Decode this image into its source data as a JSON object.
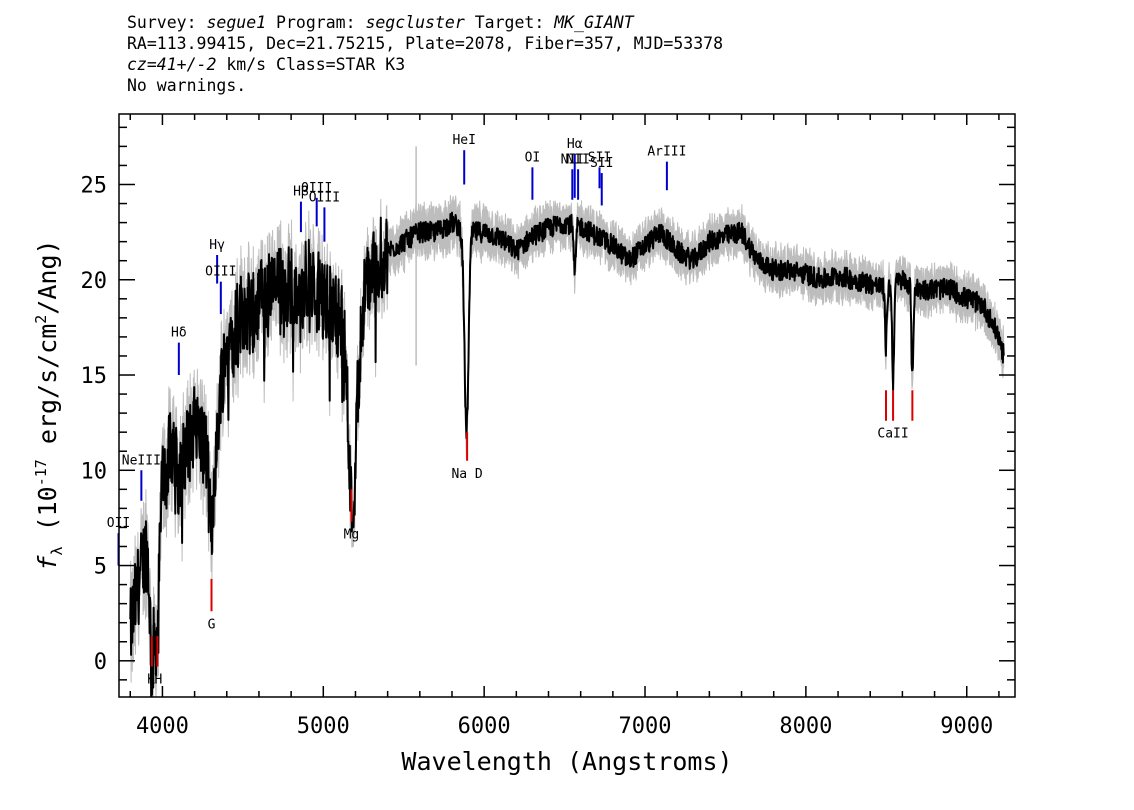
{
  "header": {
    "survey_label": "Survey: ",
    "survey": "segue1",
    "program_label": " Program: ",
    "program": "segcluster",
    "target_label": " Target: ",
    "target": "MK_GIANT",
    "line2": "RA=113.99415, Dec=21.75215, Plate=2078, Fiber=357, MJD=53378",
    "cz": "cz=41+/-2",
    "cz_rest": " km/s Class=STAR K3",
    "line4": "No warnings."
  },
  "chart_data": {
    "type": "line",
    "xlabel": "Wavelength (Angstroms)",
    "ylabel_f": "f",
    "ylabel_sub": "λ",
    "ylabel_open": " (10",
    "ylabel_exp": "-17",
    "ylabel_mid": " erg/s/cm",
    "ylabel_exp2": "2",
    "ylabel_end": "/Ang)",
    "xlim": [
      3730,
      9300
    ],
    "ylim": [
      -1.9,
      28.7
    ],
    "x_ticks": [
      4000,
      5000,
      6000,
      7000,
      8000,
      9000
    ],
    "y_ticks": [
      0,
      5,
      10,
      15,
      20,
      25
    ],
    "x_tick_labels": [
      "4000",
      "5000",
      "6000",
      "7000",
      "8000",
      "9000"
    ],
    "y_tick_labels": [
      "0",
      "5",
      "10",
      "15",
      "20",
      "25"
    ],
    "colors": {
      "spectrum": "#000000",
      "error": "#bdbdbd",
      "emission": "#0000cc",
      "absorption": "#dd0000"
    },
    "continuum": [
      [
        3800,
        1.5
      ],
      [
        3850,
        4.0
      ],
      [
        3900,
        6.0
      ],
      [
        3950,
        3.0
      ],
      [
        4000,
        9.5
      ],
      [
        4050,
        11.0
      ],
      [
        4100,
        11.5
      ],
      [
        4150,
        11.0
      ],
      [
        4200,
        12.5
      ],
      [
        4250,
        11.5
      ],
      [
        4300,
        10.5
      ],
      [
        4350,
        14.0
      ],
      [
        4400,
        16.5
      ],
      [
        4450,
        17.5
      ],
      [
        4500,
        18.5
      ],
      [
        4550,
        18.0
      ],
      [
        4600,
        19.0
      ],
      [
        4700,
        19.5
      ],
      [
        4800,
        19.8
      ],
      [
        4900,
        20.0
      ],
      [
        5000,
        19.0
      ],
      [
        5100,
        18.0
      ],
      [
        5150,
        17.0
      ],
      [
        5200,
        13.0
      ],
      [
        5250,
        19.0
      ],
      [
        5300,
        20.5
      ],
      [
        5400,
        21.5
      ],
      [
        5500,
        22.0
      ],
      [
        5600,
        22.5
      ],
      [
        5700,
        22.5
      ],
      [
        5800,
        23.0
      ],
      [
        5900,
        22.5
      ],
      [
        6000,
        22.5
      ],
      [
        6100,
        22.2
      ],
      [
        6200,
        21.5
      ],
      [
        6300,
        22.3
      ],
      [
        6400,
        22.7
      ],
      [
        6500,
        23.0
      ],
      [
        6600,
        22.8
      ],
      [
        6700,
        22.3
      ],
      [
        6800,
        21.8
      ],
      [
        6900,
        21.0
      ],
      [
        7000,
        21.8
      ],
      [
        7100,
        22.5
      ],
      [
        7200,
        21.5
      ],
      [
        7300,
        21.0
      ],
      [
        7400,
        22.0
      ],
      [
        7500,
        22.3
      ],
      [
        7600,
        22.5
      ],
      [
        7700,
        21.0
      ],
      [
        7800,
        20.5
      ],
      [
        7900,
        20.5
      ],
      [
        8000,
        20.3
      ],
      [
        8100,
        20.0
      ],
      [
        8200,
        20.2
      ],
      [
        8300,
        20.0
      ],
      [
        8400,
        19.8
      ],
      [
        8500,
        19.5
      ],
      [
        8600,
        20.0
      ],
      [
        8700,
        19.5
      ],
      [
        8800,
        19.5
      ],
      [
        8900,
        19.5
      ],
      [
        9000,
        19.0
      ],
      [
        9100,
        18.7
      ],
      [
        9200,
        17.0
      ],
      [
        9230,
        16.0
      ]
    ],
    "absorption_features": [
      [
        3934,
        4.0,
        15
      ],
      [
        3969,
        4.0,
        15
      ],
      [
        4101,
        2.0,
        12
      ],
      [
        4305,
        4.0,
        20
      ],
      [
        4340,
        2.0,
        12
      ],
      [
        4861,
        2.0,
        12
      ],
      [
        5175,
        7.0,
        25
      ],
      [
        5890,
        10.5,
        18
      ],
      [
        6563,
        2.5,
        10
      ],
      [
        8498,
        3.0,
        8
      ],
      [
        8542,
        5.0,
        8
      ],
      [
        8662,
        5.0,
        8
      ]
    ],
    "emission_lines": [
      {
        "label": "OII",
        "wave": 3727,
        "y1": 5.0,
        "y2": 6.7
      },
      {
        "label": "NeIII",
        "wave": 3869,
        "y1": 8.4,
        "y2": 10.0
      },
      {
        "label": "Hδ",
        "wave": 4102,
        "y1": 15.0,
        "y2": 16.7
      },
      {
        "label": "Hγ",
        "wave": 4340,
        "y1": 19.8,
        "y2": 21.3
      },
      {
        "label": "OIII",
        "wave": 4363,
        "y1": 18.2,
        "y2": 19.9
      },
      {
        "label": "Hβ",
        "wave": 4861,
        "y1": 22.5,
        "y2": 24.1
      },
      {
        "label": "OIII",
        "wave": 4959,
        "y1": 22.8,
        "y2": 24.3
      },
      {
        "label": "OIII",
        "wave": 5007,
        "y1": 22.0,
        "y2": 23.8
      },
      {
        "label": "HeI",
        "wave": 5876,
        "y1": 25.0,
        "y2": 26.8
      },
      {
        "label": "OI",
        "wave": 6300,
        "y1": 24.2,
        "y2": 25.9
      },
      {
        "label": "NII",
        "wave": 6548,
        "y1": 24.2,
        "y2": 25.8
      },
      {
        "label": "Hα",
        "wave": 6563,
        "y1": 24.3,
        "y2": 26.6
      },
      {
        "label": "NII",
        "wave": 6584,
        "y1": 24.2,
        "y2": 25.8
      },
      {
        "label": "SII",
        "wave": 6717,
        "y1": 24.8,
        "y2": 25.9
      },
      {
        "label": "SII",
        "wave": 6731,
        "y1": 23.9,
        "y2": 25.6
      },
      {
        "label": "ArIII",
        "wave": 7136,
        "y1": 24.7,
        "y2": 26.2
      }
    ],
    "absorption_lines": [
      {
        "label": "K",
        "wave": 3934,
        "y1": -0.3,
        "y2": 1.3,
        "text_wave": 3930
      },
      {
        "label": "H",
        "wave": 3969,
        "y1": -0.3,
        "y2": 1.3,
        "text_wave": 3975
      },
      {
        "label": "G",
        "wave": 4305,
        "y1": 2.6,
        "y2": 4.3,
        "text_wave": 4305
      },
      {
        "label": "Mg",
        "wave": 5175,
        "y1": 7.3,
        "y2": 9.0,
        "text_wave": 5175
      },
      {
        "label": "Na D",
        "wave": 5894,
        "y1": 10.5,
        "y2": 12.0,
        "text_wave": 5894
      },
      {
        "label": "CaII",
        "wave": 8498,
        "y1": 12.6,
        "y2": 14.2,
        "text_wave": 8542
      },
      {
        "label": "",
        "wave": 8542,
        "y1": 12.6,
        "y2": 14.2
      },
      {
        "label": "",
        "wave": 8662,
        "y1": 12.6,
        "y2": 14.2
      }
    ]
  }
}
